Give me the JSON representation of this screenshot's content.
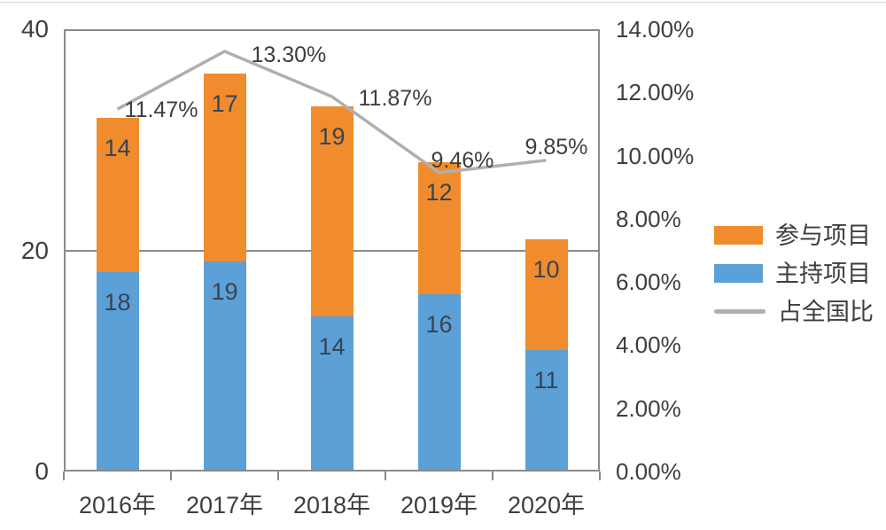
{
  "page": {
    "background": "#ffffff"
  },
  "colors": {
    "axis_line": "#8a8a8a",
    "axis_text": "#3e3e3e",
    "bar_label_text": "#394452",
    "bar_blue": "#5ba0d6",
    "bar_orange": "#f08c2e",
    "line_gray": "#afafaf"
  },
  "chart_data": {
    "type": "bar",
    "subtype": "stacked-bars-with-line-overlay",
    "categories": [
      "2016年",
      "2017年",
      "2018年",
      "2019年",
      "2020年"
    ],
    "series": [
      {
        "name": "主持项目",
        "chart": "bar",
        "stack": true,
        "color": "#5ba0d6",
        "values": [
          18,
          19,
          14,
          16,
          11
        ],
        "point_labels": [
          "18",
          "19",
          "14",
          "16",
          "11"
        ]
      },
      {
        "name": "参与项目",
        "chart": "bar",
        "stack": true,
        "color": "#f08c2e",
        "values": [
          14,
          17,
          19,
          12,
          10
        ],
        "point_labels": [
          "14",
          "17",
          "19",
          "12",
          "10"
        ]
      },
      {
        "name": "占全国比",
        "chart": "line",
        "axis": "right",
        "color": "#afafaf",
        "values": [
          11.47,
          13.3,
          11.87,
          9.46,
          9.85
        ],
        "point_labels": [
          "11.47%",
          "13.30%",
          "11.87%",
          "9.46%",
          "9.85%"
        ]
      }
    ],
    "left_axis": {
      "min": 0,
      "max": 40,
      "tick_values": [
        0,
        20,
        40
      ],
      "tick_labels": [
        "0",
        "20",
        "40"
      ],
      "gridline_values": [
        20
      ]
    },
    "right_axis": {
      "min": 0,
      "max": 14,
      "tick_values": [
        0,
        2,
        4,
        6,
        8,
        10,
        12,
        14
      ],
      "tick_labels": [
        "0.00%",
        "2.00%",
        "4.00%",
        "6.00%",
        "8.00%",
        "10.00%",
        "12.00%",
        "14.00%"
      ]
    },
    "grid": "horizontal gridline at 20 only",
    "legend_position": "right"
  },
  "legend": {
    "items": [
      {
        "label": "参与项目",
        "swatch": "rect",
        "color": "#f08c2e"
      },
      {
        "label": "主持项目",
        "swatch": "rect",
        "color": "#5ba0d6"
      },
      {
        "label": "占全国比",
        "swatch": "line",
        "color": "#afafaf"
      }
    ]
  }
}
